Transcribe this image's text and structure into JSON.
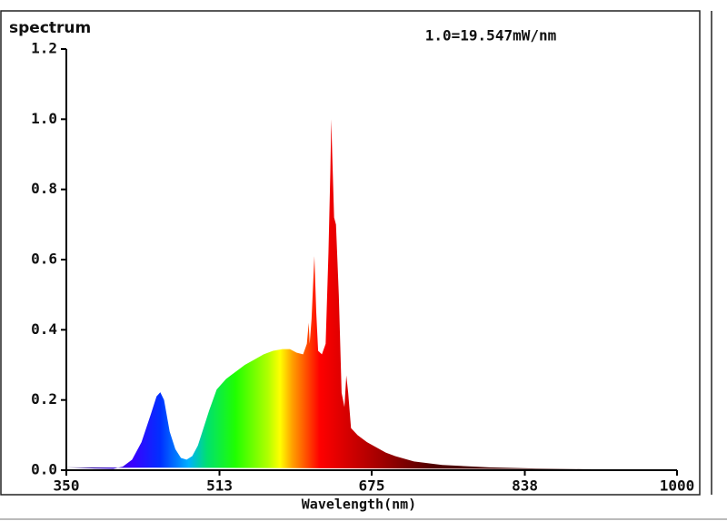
{
  "chart_data": {
    "type": "area",
    "title": "spectrum",
    "annotation": "1.0=19.547mW/nm",
    "x_label": "Wavelength(nm)",
    "xlim": [
      350,
      1000
    ],
    "xticks": [
      350,
      513,
      675,
      838,
      1000
    ],
    "ylim": [
      0,
      1.2
    ],
    "yticks": [
      {
        "value": 0,
        "label": "0.0"
      },
      0.2,
      0.4,
      0.6,
      0.8,
      {
        "value": 1,
        "label": "1.0"
      },
      1.2
    ],
    "grid": false,
    "x": [
      350,
      380,
      400,
      410,
      420,
      430,
      440,
      446,
      450,
      454,
      460,
      466,
      472,
      478,
      484,
      490,
      496,
      502,
      510,
      520,
      530,
      540,
      550,
      560,
      570,
      580,
      588,
      595,
      602,
      606,
      608,
      609,
      611,
      613,
      614,
      616,
      618,
      622,
      626,
      629,
      631,
      632,
      633,
      635,
      637,
      640,
      643,
      646,
      648,
      650,
      653,
      660,
      670,
      680,
      690,
      700,
      720,
      750,
      800,
      850,
      900,
      950,
      1000
    ],
    "values": [
      0.008,
      0.005,
      0.004,
      0.01,
      0.03,
      0.08,
      0.16,
      0.21,
      0.222,
      0.2,
      0.11,
      0.06,
      0.035,
      0.03,
      0.04,
      0.07,
      0.12,
      0.17,
      0.23,
      0.26,
      0.28,
      0.3,
      0.315,
      0.33,
      0.34,
      0.345,
      0.345,
      0.335,
      0.33,
      0.36,
      0.42,
      0.36,
      0.43,
      0.55,
      0.61,
      0.45,
      0.34,
      0.33,
      0.36,
      0.62,
      0.85,
      1.0,
      0.9,
      0.72,
      0.7,
      0.5,
      0.22,
      0.18,
      0.27,
      0.22,
      0.12,
      0.1,
      0.08,
      0.065,
      0.05,
      0.04,
      0.025,
      0.015,
      0.008,
      0.005,
      0.003,
      0.002,
      0.002
    ]
  }
}
